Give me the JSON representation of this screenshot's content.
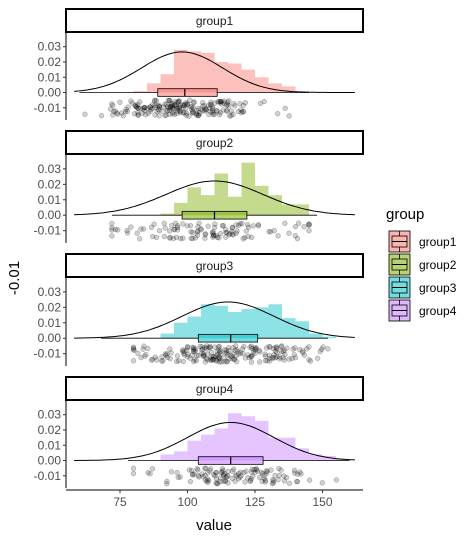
{
  "chart_data": {
    "type": "histogram-density-boxplot-jitter",
    "xlabel": "value",
    "ylabel": "-0.01",
    "xlim": [
      55,
      165
    ],
    "ylim": [
      -0.018,
      0.039
    ],
    "x_ticks": [
      {
        "value": 75,
        "label": "75"
      },
      {
        "value": 100,
        "label": "100"
      },
      {
        "value": 125,
        "label": "125"
      },
      {
        "value": 150,
        "label": "150"
      }
    ],
    "y_ticks": [
      {
        "value": 0.03,
        "label": "0.03"
      },
      {
        "value": 0.02,
        "label": "0.02"
      },
      {
        "value": 0.01,
        "label": "0.01"
      },
      {
        "value": 0.0,
        "label": "0.00"
      },
      {
        "value": -0.01,
        "label": "-0.01"
      }
    ],
    "legend": {
      "title": "group",
      "position": "right"
    },
    "bin_edges": [
      60,
      65,
      70,
      75,
      80,
      85,
      90,
      95,
      100,
      105,
      110,
      115,
      120,
      125,
      130,
      135,
      140,
      145,
      150,
      155,
      160,
      165
    ],
    "series": [
      {
        "name": "group1",
        "color": "#F8766D",
        "density": [
          0,
          0,
          0,
          0,
          0.001,
          0.006,
          0.012,
          0.028,
          0.027,
          0.026,
          0.02,
          0.019,
          0.015,
          0.01,
          0.006,
          0.004,
          0.001,
          0,
          0,
          0,
          0
        ],
        "normal": {
          "mean": 98,
          "sd": 15
        },
        "box": {
          "q1": 89,
          "median": 99,
          "q3": 111,
          "whisker_low": 60,
          "whisker_high": 145
        },
        "jitter": {
          "min": 62,
          "max": 145,
          "count": 200
        }
      },
      {
        "name": "group2",
        "color": "#7CAE00",
        "density": [
          0,
          0,
          0,
          0,
          0,
          0,
          0.001,
          0.008,
          0.018,
          0.013,
          0.027,
          0.012,
          0.034,
          0.019,
          0.013,
          0.007,
          0.007,
          0,
          0,
          0,
          0
        ],
        "normal": {
          "mean": 110,
          "sd": 18
        },
        "box": {
          "q1": 98,
          "median": 110,
          "q3": 122,
          "whisker_low": 72,
          "whisker_high": 148
        },
        "jitter": {
          "min": 72,
          "max": 145,
          "count": 110
        }
      },
      {
        "name": "group3",
        "color": "#00BFC4",
        "density": [
          0,
          0,
          0,
          0,
          0,
          0,
          0.003,
          0.01,
          0.014,
          0.022,
          0.021,
          0.017,
          0.019,
          0.02,
          0.022,
          0.013,
          0.011,
          0.003,
          0.001,
          0,
          0
        ],
        "normal": {
          "mean": 115,
          "sd": 17
        },
        "box": {
          "q1": 104,
          "median": 116,
          "q3": 126,
          "whisker_low": 68,
          "whisker_high": 152
        },
        "jitter": {
          "min": 80,
          "max": 152,
          "count": 200
        }
      },
      {
        "name": "group4",
        "color": "#C77CFF",
        "density": [
          0,
          0,
          0,
          0,
          0,
          0,
          0.004,
          0.006,
          0.013,
          0.017,
          0.021,
          0.031,
          0.029,
          0.026,
          0.015,
          0.015,
          0.008,
          0.004,
          0.003,
          0.001,
          0
        ],
        "normal": {
          "mean": 116,
          "sd": 16
        },
        "box": {
          "q1": 104,
          "median": 116,
          "q3": 128,
          "whisker_low": 78,
          "whisker_high": 160
        },
        "jitter": {
          "min": 80,
          "max": 162,
          "count": 120
        }
      }
    ]
  }
}
